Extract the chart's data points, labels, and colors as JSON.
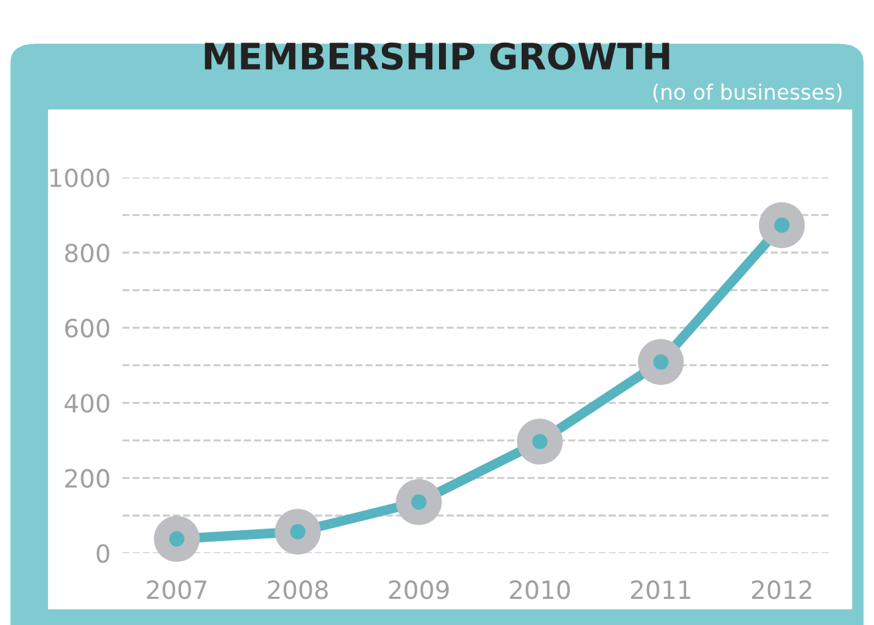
{
  "chart_data": {
    "type": "line",
    "title": "MEMBERSHIP GROWTH",
    "subtitle": "(no of businesses)",
    "categories": [
      "2007",
      "2008",
      "2009",
      "2010",
      "2011",
      "2012"
    ],
    "series": [
      {
        "color": "#56b4c0",
        "values": [
          38,
          57,
          136,
          297,
          509,
          873
        ]
      }
    ],
    "ylim": [
      0,
      1000
    ],
    "yticks": [
      0,
      {
        "value": 100,
        "label": null
      },
      200,
      {
        "value": 300,
        "label": null
      },
      400,
      {
        "value": 500,
        "label": null
      },
      600,
      {
        "value": 700,
        "label": null
      },
      800,
      {
        "value": 900,
        "label": null
      },
      1000
    ],
    "grid": "y",
    "marker": "circle",
    "line_style": "solid"
  }
}
